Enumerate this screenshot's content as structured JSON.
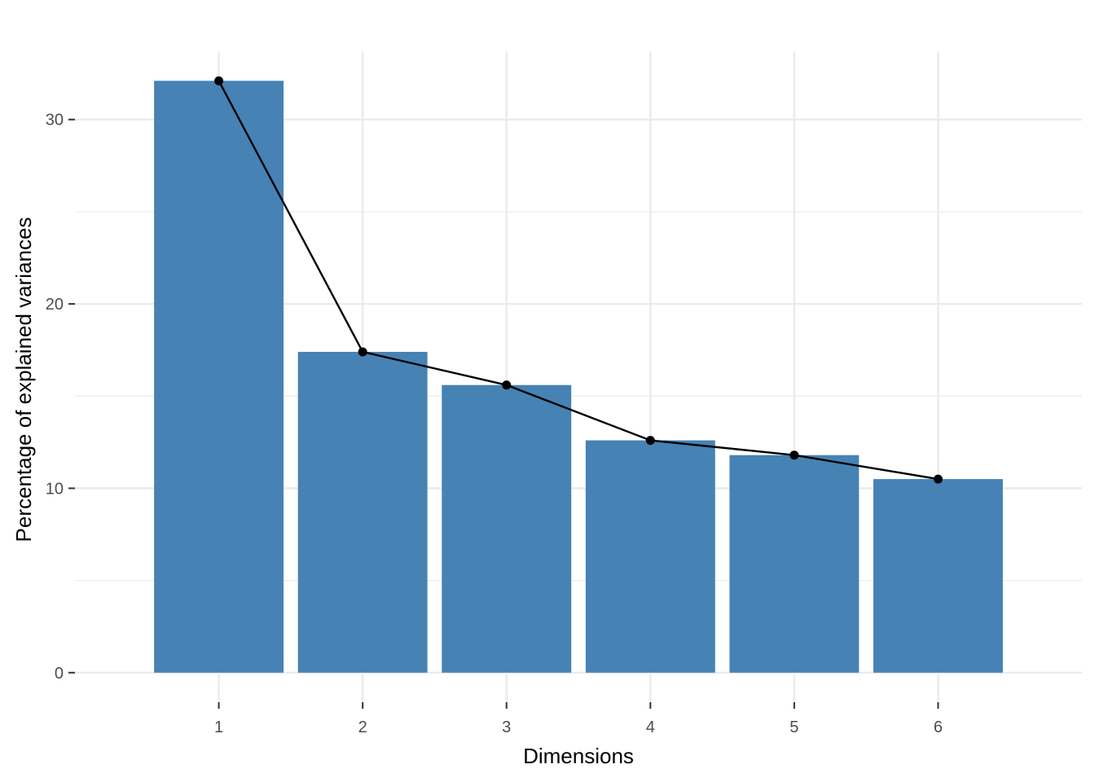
{
  "chart_data": {
    "type": "bar",
    "categories": [
      "1",
      "2",
      "3",
      "4",
      "5",
      "6"
    ],
    "values": [
      32.1,
      17.4,
      15.6,
      12.6,
      11.8,
      10.5
    ],
    "overlay": {
      "type": "line",
      "markers": true,
      "values": [
        32.1,
        17.4,
        15.6,
        12.6,
        11.8,
        10.5
      ]
    },
    "title": "",
    "xlabel": "Dimensions",
    "ylabel": "Percentage of explained variances",
    "ylim": [
      -1.6,
      33.7
    ],
    "yticks": [
      0,
      10,
      20,
      30
    ],
    "grid": true,
    "colors": {
      "bar": "#4682B4",
      "line": "#000000",
      "grid": "#EBEBEB"
    }
  }
}
